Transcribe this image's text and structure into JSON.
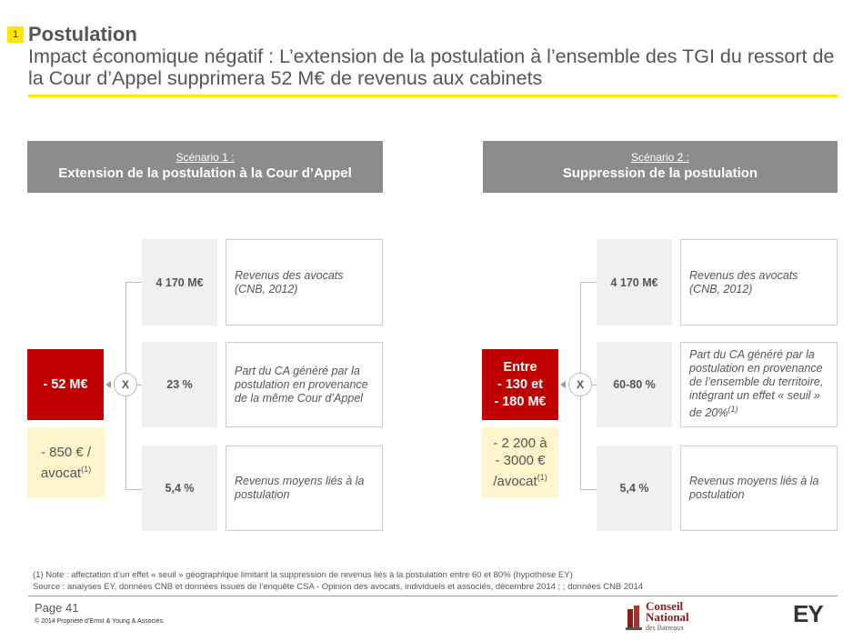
{
  "header": {
    "badge": "1",
    "title": "Postulation",
    "subtitle": "Impact économique négatif : L’extension de la postulation à l’ensemble des TGI du ressort de la Cour d’Appel supprimera 52 M€ de revenus aux cabinets"
  },
  "scenario1": {
    "label": "Scénario 1 :",
    "title": "Extension de la postulation à la Cour d’Appel",
    "operator": "X",
    "result": "- 52 M€",
    "per_lawyer": "- 850 € / avocat",
    "per_lawyer_note": "(1)",
    "rows": [
      {
        "value": "4 170 M€",
        "desc": "Revenus des avocats (CNB, 2012)"
      },
      {
        "value": "23 %",
        "desc": "Part du CA généré par la postulation en provenance de la même Cour d’Appel"
      },
      {
        "value": "5,4 %",
        "desc": "Revenus moyens liés à la postulation"
      }
    ]
  },
  "scenario2": {
    "label": "Scénario 2 :",
    "title": "Suppression de la postulation",
    "operator": "X",
    "result_l1": "Entre",
    "result_l2": "- 130 et",
    "result_l3": "- 180 M€",
    "per_lawyer_l1": "- 2 200 à",
    "per_lawyer_l2": "- 3000 €",
    "per_lawyer_l3": "/avocat",
    "per_lawyer_note": "(1)",
    "rows": [
      {
        "value": "4 170 M€",
        "desc": "Revenus des avocats (CNB, 2012)"
      },
      {
        "value": "60-80 %",
        "desc": "Part du CA généré par la postulation en provenance de l’ensemble du territoire, intégrant un effet « seuil » de 20%",
        "note": "(1)"
      },
      {
        "value": "5,4 %",
        "desc": "Revenus moyens liés à la postulation"
      }
    ]
  },
  "notes": {
    "note1": "(1) Note : affectation d’un effet « seuil » géographique limitant la suppression de revenus liés à la postulation entre 60 et 80% (hypothèse EY)",
    "source": "Source : analyses EY, données CNB et données issues de l’enquête CSA - Opinion des avocats, individuels et associés, décembre 2014 ; ; données CNB 2014"
  },
  "footer": {
    "page": "Page 41",
    "copyright": "© 2014 Propriété d’Ernst & Young & Associés.",
    "cnb_l1": "Conseil",
    "cnb_l2": "National",
    "cnb_l3": "des Barreaux",
    "ey_logo": "EY"
  },
  "colors": {
    "accent_yellow": "#ffe600",
    "result_red": "#c00000",
    "scenario_grey": "#8c8c8c",
    "cream": "#fff4cc"
  }
}
